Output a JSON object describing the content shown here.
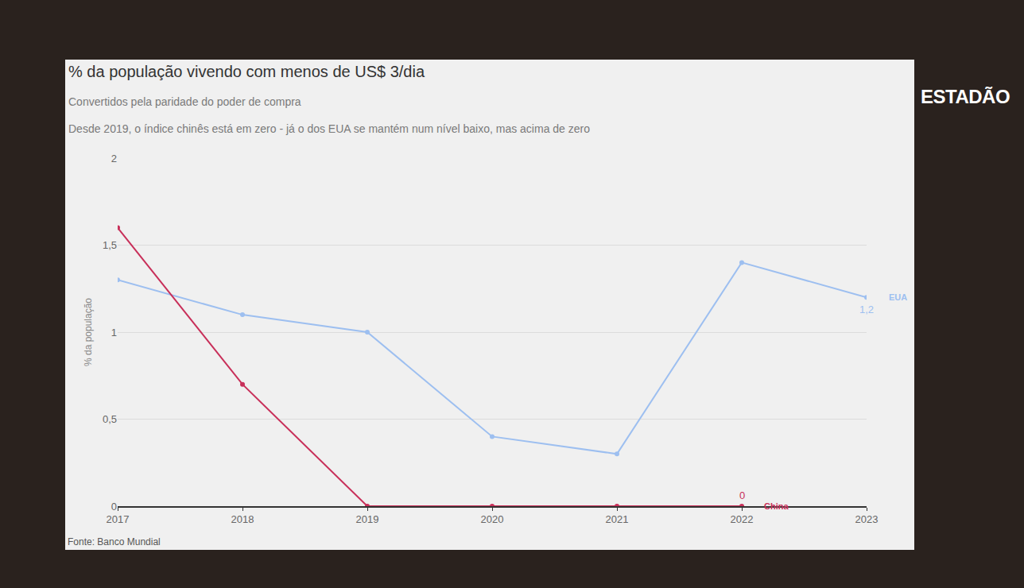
{
  "chart_data": {
    "type": "line",
    "title": "% da população vivendo com menos de US$ 3/dia",
    "subtitle": [
      "Convertidos pela paridade do poder de compra",
      "Desde 2019, o índice chinês está em zero - já o dos EUA se mantém num nível baixo, mas acima de zero"
    ],
    "y_label": "% da população",
    "source": "Fonte: Banco Mundial",
    "brand": "ESTADÃO",
    "x": [
      2017,
      2018,
      2019,
      2020,
      2021,
      2022,
      2023
    ],
    "xlim": [
      2017,
      2023
    ],
    "xticks": [
      2017,
      2018,
      2019,
      2020,
      2021,
      2022,
      2023
    ],
    "ylim": [
      0,
      2
    ],
    "yticks": [
      0,
      {
        "value": 0.5,
        "label": "0,5"
      },
      1,
      {
        "value": 1.5,
        "label": "1,5"
      },
      2
    ],
    "grid": true,
    "marker": "circle",
    "series": [
      {
        "name": "EUA",
        "color": "#9dbff0",
        "values": [
          1.3,
          1.1,
          1.0,
          0.4,
          0.3,
          1.4,
          1.2
        ],
        "value_labels": [
          null,
          null,
          null,
          null,
          null,
          null,
          "1,2"
        ]
      },
      {
        "name": "China",
        "color": "#c8305a",
        "values": [
          1.6,
          0.7,
          0,
          0,
          0,
          0,
          null
        ],
        "value_labels": [
          null,
          null,
          null,
          null,
          null,
          "0",
          null
        ]
      }
    ]
  }
}
